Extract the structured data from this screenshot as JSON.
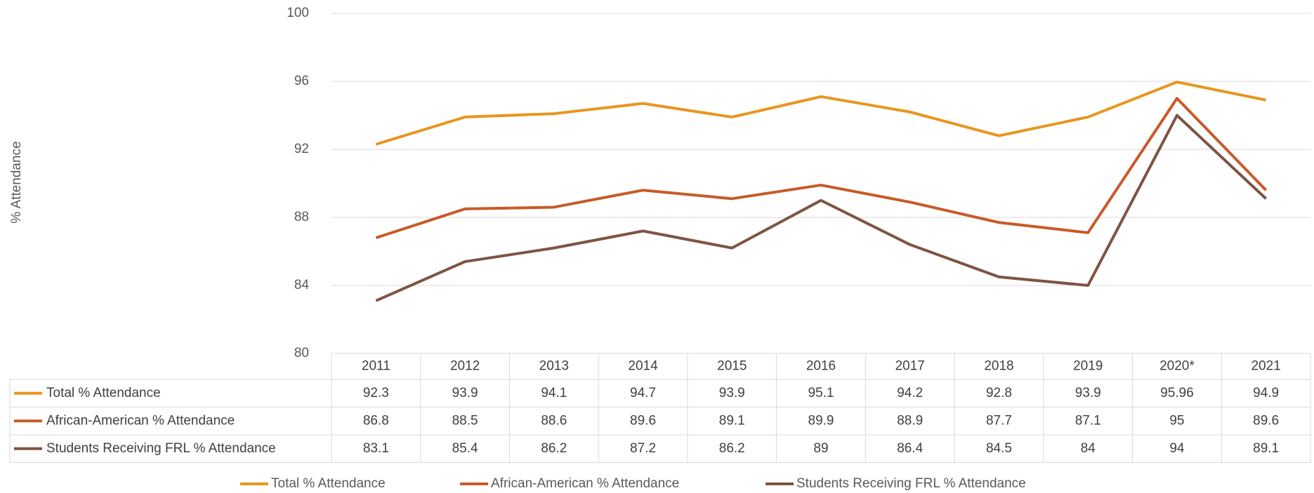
{
  "chart_data": {
    "type": "line",
    "y_label": "% Attendance",
    "categories": [
      "2011",
      "2012",
      "2013",
      "2014",
      "2015",
      "2016",
      "2017",
      "2018",
      "2019",
      "2020*",
      "2021"
    ],
    "series": [
      {
        "name": "Total % Attendance",
        "color": "#e8961e",
        "values": [
          92.3,
          93.9,
          94.1,
          94.7,
          93.9,
          95.1,
          94.2,
          92.8,
          93.9,
          95.96,
          94.9
        ]
      },
      {
        "name": "African-American % Attendance",
        "color": "#c75b29",
        "values": [
          86.8,
          88.5,
          88.6,
          89.6,
          89.1,
          89.9,
          88.9,
          87.7,
          87.1,
          95,
          89.6
        ]
      },
      {
        "name": "Students Receiving FRL % Attendance",
        "color": "#7e5442",
        "values": [
          83.1,
          85.4,
          86.2,
          87.2,
          86.2,
          89,
          86.4,
          84.5,
          84,
          94,
          89.1
        ]
      }
    ],
    "ylim": [
      80,
      100
    ],
    "yticks": [
      80,
      84,
      88,
      92,
      96,
      100
    ],
    "grid": true,
    "legend": "bottom"
  }
}
